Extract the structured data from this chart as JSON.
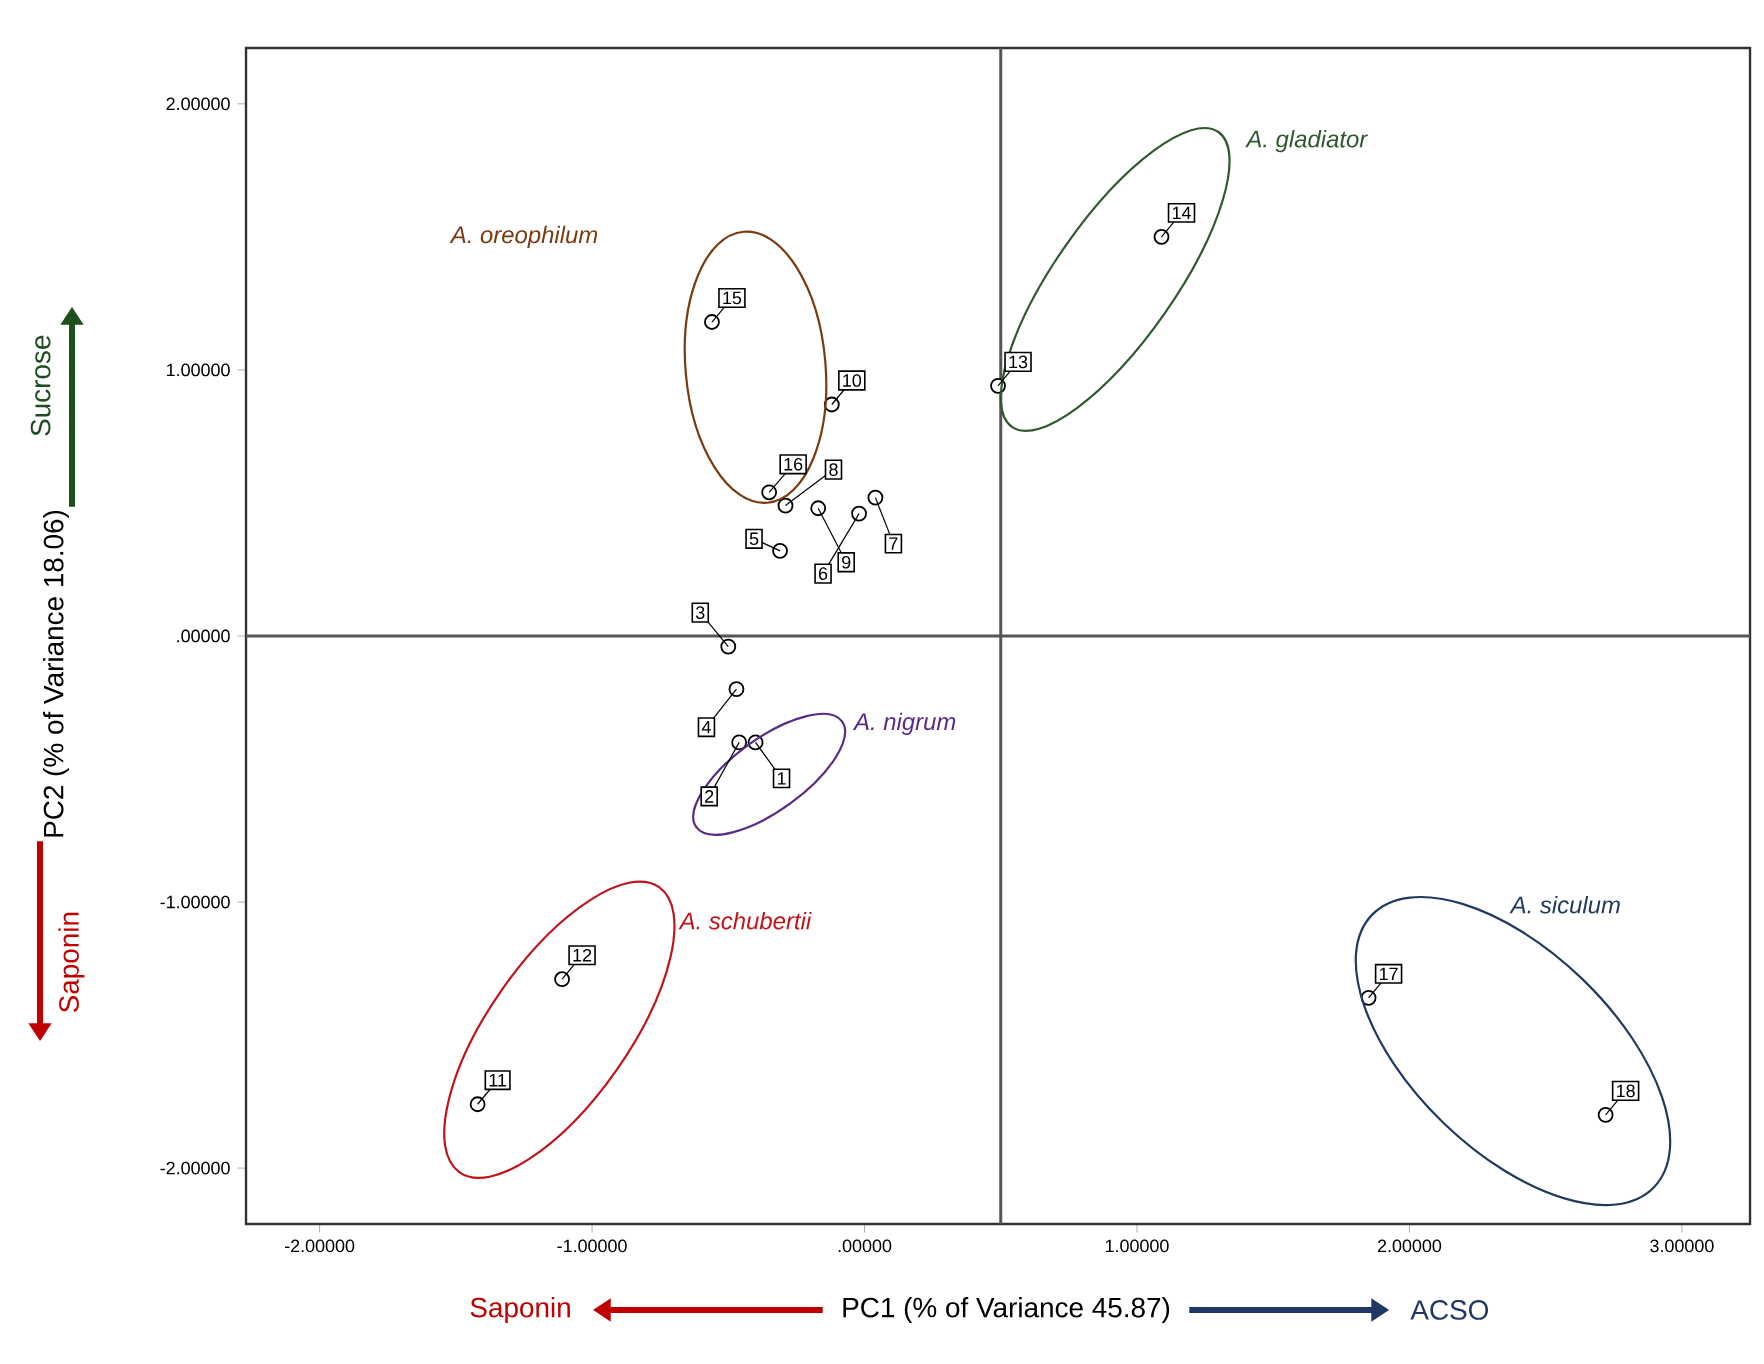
{
  "chart_data": {
    "type": "scatter",
    "xlabel": "PC1 (% of Variance 45.87)",
    "ylabel": "PC2 (% of Variance 18.06)",
    "x": [
      -0.4,
      -0.46,
      -0.5,
      -0.47,
      -0.31,
      -0.02,
      0.04,
      -0.29,
      -0.17,
      -0.12,
      -1.42,
      -1.11,
      0.49,
      1.09,
      -0.56,
      -0.35,
      1.85,
      2.72
    ],
    "values": [
      -0.4,
      -0.4,
      -0.04,
      -0.2,
      0.32,
      0.46,
      0.52,
      0.49,
      0.48,
      0.87,
      -1.76,
      -1.29,
      0.94,
      1.5,
      1.18,
      0.54,
      -1.36,
      -1.8
    ],
    "color": "#000000",
    "marker": "circle",
    "xlim": [
      -2.27,
      3.25
    ],
    "ylim": [
      -2.21,
      2.21
    ],
    "xticks": [
      {
        "value": -2,
        "label": "-2.00000"
      },
      {
        "value": -1,
        "label": "-1.00000"
      },
      {
        "value": 0,
        "label": ".00000"
      },
      {
        "value": 1,
        "label": "1.00000"
      },
      {
        "value": 2,
        "label": "2.00000"
      },
      {
        "value": 3,
        "label": "3.00000"
      }
    ],
    "yticks": [
      {
        "value": -2,
        "label": "-2.00000"
      },
      {
        "value": -1,
        "label": "-1.00000"
      },
      {
        "value": 0,
        "label": ".00000"
      },
      {
        "value": 1,
        "label": "1.00000"
      },
      {
        "value": 2,
        "label": "2.00000"
      }
    ],
    "ref_lines": [
      {
        "axis": "x",
        "value": 0.5,
        "color": "#555555"
      },
      {
        "axis": "y",
        "value": 0,
        "color": "#555555"
      }
    ],
    "annotations": [
      "A. oreophilum",
      "A. gladiator",
      "A. nigrum",
      "A. schubertii",
      "A. siculum",
      "Saponin",
      "ACSO",
      "Sucrose",
      "Saponin",
      {
        "text": "1",
        "x": -0.4,
        "y": -0.4
      },
      {
        "text": "2",
        "x": -0.46,
        "y": -0.4
      },
      {
        "text": "3",
        "x": -0.5,
        "y": -0.04
      },
      {
        "text": "4",
        "x": -0.47,
        "y": -0.2
      },
      {
        "text": "5",
        "x": -0.31,
        "y": 0.32
      },
      {
        "text": "6",
        "x": -0.02,
        "y": 0.46
      },
      {
        "text": "7",
        "x": 0.04,
        "y": 0.52
      },
      {
        "text": "8",
        "x": -0.29,
        "y": 0.49
      },
      {
        "text": "9",
        "x": -0.17,
        "y": 0.48
      },
      {
        "text": "10",
        "x": -0.12,
        "y": 0.87
      },
      {
        "text": "11",
        "x": -1.42,
        "y": -1.76
      },
      {
        "text": "12",
        "x": -1.11,
        "y": -1.29
      },
      {
        "text": "13",
        "x": 0.49,
        "y": 0.94
      },
      {
        "text": "14",
        "x": 1.09,
        "y": 1.5
      },
      {
        "text": "15",
        "x": -0.56,
        "y": 1.18
      },
      {
        "text": "16",
        "x": -0.35,
        "y": 0.54
      },
      {
        "text": "17",
        "x": 1.85,
        "y": -1.36
      },
      {
        "text": "18",
        "x": 2.72,
        "y": -1.8
      }
    ],
    "grid": false
  }
}
